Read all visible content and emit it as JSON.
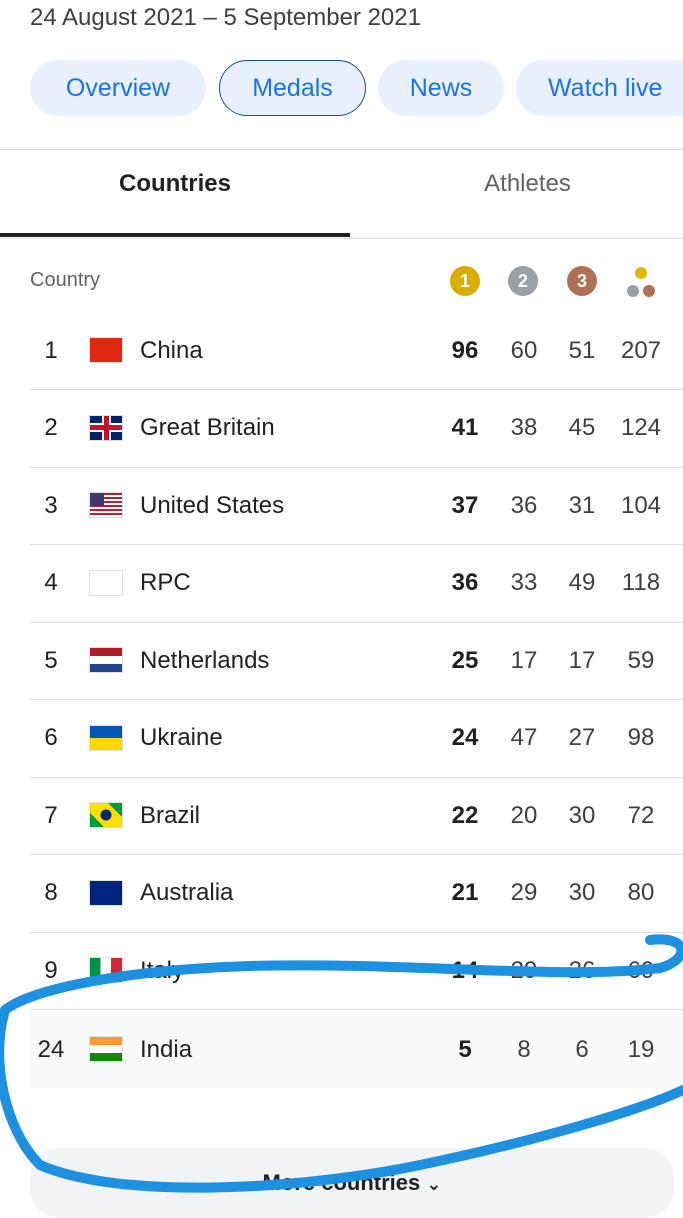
{
  "header": {
    "date": "24 August 2021 – 5 September 2021"
  },
  "nav": {
    "chips": [
      "Overview",
      "Medals",
      "News",
      "Watch live"
    ]
  },
  "tabs": [
    "Countries",
    "Athletes"
  ],
  "table": {
    "header": {
      "country": "Country",
      "medal_icons": [
        "1",
        "2",
        "3"
      ]
    },
    "rows": [
      [
        1,
        "China",
        96,
        60,
        51,
        207
      ],
      [
        2,
        "Great Britain",
        41,
        38,
        45,
        124
      ],
      [
        3,
        "United States",
        37,
        36,
        31,
        104
      ],
      [
        4,
        "RPC",
        36,
        33,
        49,
        118
      ],
      [
        5,
        "Netherlands",
        25,
        17,
        17,
        59
      ],
      [
        6,
        "Ukraine",
        24,
        47,
        27,
        98
      ],
      [
        7,
        "Brazil",
        22,
        20,
        30,
        72
      ],
      [
        8,
        "Australia",
        21,
        29,
        30,
        80
      ],
      [
        9,
        "Italy",
        14,
        29,
        26,
        69
      ],
      [
        24,
        "India",
        5,
        8,
        6,
        19
      ]
    ]
  },
  "more_button": "More countries"
}
